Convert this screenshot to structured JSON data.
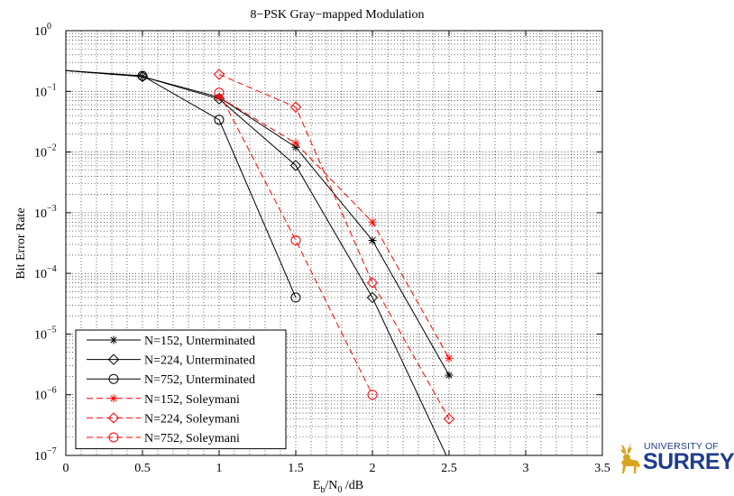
{
  "chart_data": {
    "type": "line",
    "title": "8−PSK Gray−mapped Modulation",
    "xlabel_main": "E",
    "xlabel_sub1": "b",
    "xlabel_mid": "/N",
    "xlabel_sub2": "0",
    "xlabel_tail": " /dB",
    "ylabel": "Bit Error Rate",
    "xlim": [
      0,
      3.5
    ],
    "ylim_log10": [
      -7,
      0
    ],
    "yscale": "log",
    "x_ticks": [
      "0",
      "0.5",
      "1",
      "1.5",
      "2",
      "2.5",
      "3",
      "3.5"
    ],
    "x_tick_values": [
      0,
      0.5,
      1,
      1.5,
      2,
      2.5,
      3,
      3.5
    ],
    "y_tick_exponents": [
      "0",
      "−1",
      "−2",
      "−3",
      "−4",
      "−5",
      "−6",
      "−7"
    ],
    "y_tick_base": "10",
    "grid": "dotted",
    "legend_position": "bottom-left",
    "series": [
      {
        "name": "N=152, Unterminated",
        "color": "#000000",
        "style": "solid",
        "marker": "star",
        "x": [
          0,
          0.5,
          1,
          1.5,
          2,
          2.5
        ],
        "y": [
          0.22,
          0.175,
          0.08,
          0.012,
          0.00035,
          2.1e-06
        ]
      },
      {
        "name": "N=224, Unterminated",
        "color": "#000000",
        "style": "solid",
        "marker": "diamond",
        "x": [
          0,
          0.5,
          1,
          1.5,
          2,
          2.5
        ],
        "y": [
          0.22,
          0.175,
          0.075,
          0.006,
          4e-05,
          8e-08
        ]
      },
      {
        "name": "N=752, Unterminated",
        "color": "#000000",
        "style": "solid",
        "marker": "circle",
        "x": [
          0,
          0.5,
          1,
          1.5
        ],
        "y": [
          0.22,
          0.18,
          0.034,
          4e-05
        ]
      },
      {
        "name": "N=152, Soleymani",
        "color": "#ff0000",
        "style": "dashed",
        "marker": "star",
        "x": [
          1,
          1.5,
          2,
          2.5
        ],
        "y": [
          0.08,
          0.014,
          0.0007,
          4e-06
        ]
      },
      {
        "name": "N=224, Soleymani",
        "color": "#ff0000",
        "style": "dashed",
        "marker": "diamond",
        "x": [
          1,
          1.5,
          2,
          2.5
        ],
        "y": [
          0.19,
          0.055,
          7e-05,
          4e-07
        ]
      },
      {
        "name": "N=752, Soleymani",
        "color": "#ff0000",
        "style": "dashed",
        "marker": "circle",
        "x": [
          1,
          1.5,
          2
        ],
        "y": [
          0.095,
          0.00035,
          1e-06
        ]
      }
    ]
  },
  "logo": {
    "line1": "UNIVERSITY OF",
    "line2": "SURREY",
    "color": "#1f3d8a",
    "emblem_color": "#d9a520",
    "icon": "stag-icon"
  }
}
